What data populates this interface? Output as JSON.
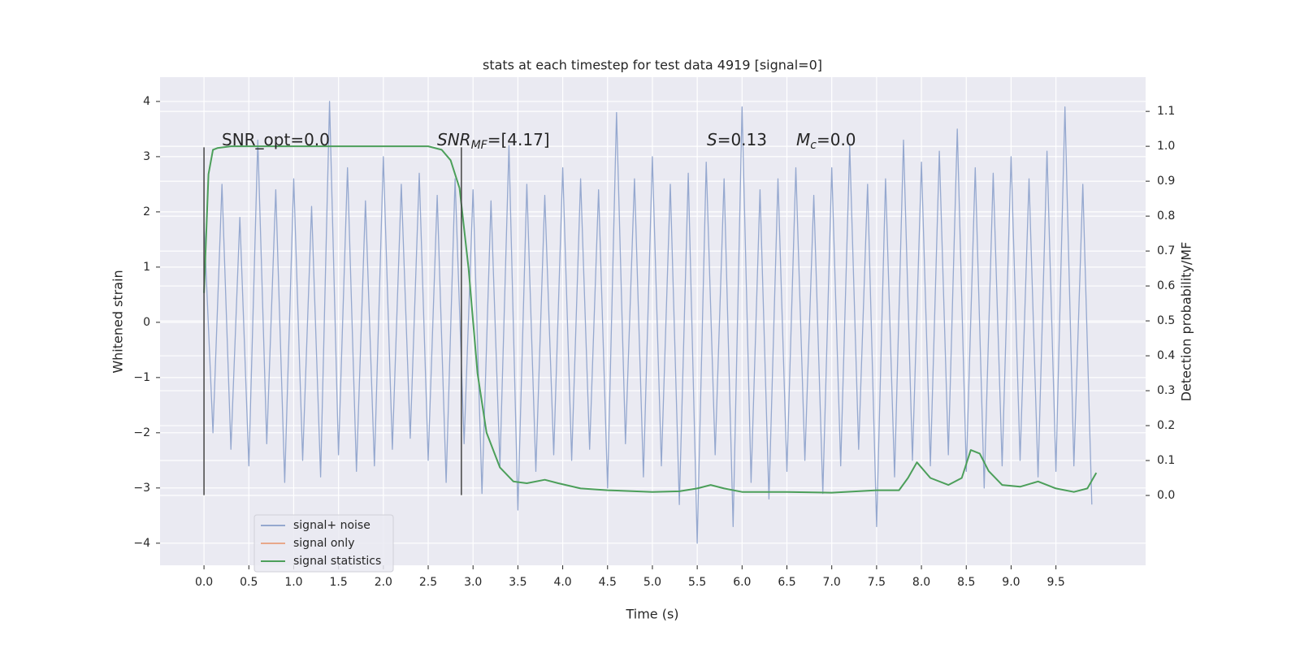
{
  "chart_data": {
    "type": "line",
    "title": "stats at each timestep for test data 4919 [signal=0]",
    "xlabel": "Time (s)",
    "ylabel": "Whitened strain",
    "y2label": "Detection probability/MF",
    "xlim": [
      -0.49,
      10.5
    ],
    "ylim": [
      -4.4,
      4.44
    ],
    "y2lim": [
      -0.2,
      1.198
    ],
    "grid": true,
    "legend": "lower left",
    "xticks": [
      {
        "value": 0,
        "label": "0.0"
      },
      0.5,
      {
        "value": 1,
        "label": "1.0"
      },
      1.5,
      {
        "value": 2,
        "label": "2.0"
      },
      2.5,
      {
        "value": 3,
        "label": "3.0"
      },
      3.5,
      {
        "value": 4,
        "label": "4.0"
      },
      4.5,
      {
        "value": 5,
        "label": "5.0"
      },
      5.5,
      {
        "value": 6,
        "label": "6.0"
      },
      6.5,
      {
        "value": 7,
        "label": "7.0"
      },
      7.5,
      {
        "value": 8,
        "label": "8.0"
      },
      8.5,
      {
        "value": 9,
        "label": "9.0"
      },
      9.5
    ],
    "yticks": [
      {
        "value": -4,
        "label": "−4"
      },
      {
        "value": -3,
        "label": "−3"
      },
      {
        "value": -2,
        "label": "−2"
      },
      {
        "value": -1,
        "label": "−1"
      },
      0,
      1,
      2,
      3,
      4
    ],
    "y2ticks": [
      {
        "value": 0,
        "label": "0.0"
      },
      0.1,
      0.2,
      0.3,
      0.4,
      0.5,
      0.6,
      0.7,
      0.8,
      0.9,
      {
        "value": 1,
        "label": "1.0"
      },
      1.1
    ],
    "vlines": {
      "x": [
        0,
        2.87
      ],
      "ymin": -3.13,
      "ymax": 3.17,
      "color": "#444444"
    },
    "annotations": [
      {
        "main": "SNR_opt=0.0"
      },
      {
        "main": "SNR",
        "sub": "MF",
        "rest": "=[4.17]"
      },
      {
        "main": "S",
        "rest": "=0.13"
      },
      {
        "main": "M",
        "sub": "c",
        "rest": "=0.0"
      }
    ],
    "series": [
      {
        "name": "signal+ noise",
        "color": "#95a8cf",
        "x": [
          0.0,
          0.1,
          0.2,
          0.3,
          0.4,
          0.5,
          0.6,
          0.7,
          0.8,
          0.9,
          1.0,
          1.1,
          1.2,
          1.3,
          1.4,
          1.5,
          1.6,
          1.7,
          1.8,
          1.9,
          2.0,
          2.1,
          2.2,
          2.3,
          2.4,
          2.5,
          2.6,
          2.7,
          2.8,
          2.9,
          3.0,
          3.1,
          3.2,
          3.3,
          3.4,
          3.5,
          3.6,
          3.7,
          3.8,
          3.9,
          4.0,
          4.1,
          4.2,
          4.3,
          4.4,
          4.5,
          4.6,
          4.7,
          4.8,
          4.9,
          5.0,
          5.1,
          5.2,
          5.3,
          5.4,
          5.5,
          5.6,
          5.7,
          5.8,
          5.9,
          6.0,
          6.1,
          6.2,
          6.3,
          6.4,
          6.5,
          6.6,
          6.7,
          6.8,
          6.9,
          7.0,
          7.1,
          7.2,
          7.3,
          7.4,
          7.5,
          7.6,
          7.7,
          7.8,
          7.9,
          8.0,
          8.1,
          8.2,
          8.3,
          8.4,
          8.5,
          8.6,
          8.7,
          8.8,
          8.9,
          9.0,
          9.1,
          9.2,
          9.3,
          9.4,
          9.5,
          9.6,
          9.7,
          9.8,
          9.9
        ],
        "values": [
          1.8,
          -2.0,
          2.5,
          -2.3,
          1.9,
          -2.6,
          3.3,
          -2.2,
          2.4,
          -2.9,
          2.6,
          -2.5,
          2.1,
          -2.8,
          4.0,
          -2.4,
          2.8,
          -2.7,
          2.2,
          -2.6,
          3.0,
          -2.3,
          2.5,
          -2.1,
          2.7,
          -2.5,
          2.3,
          -2.9,
          2.6,
          -2.2,
          2.4,
          -3.1,
          2.2,
          -2.6,
          3.2,
          -3.4,
          2.5,
          -2.7,
          2.3,
          -2.4,
          2.8,
          -2.5,
          2.6,
          -2.3,
          2.4,
          -3.0,
          3.8,
          -2.2,
          2.6,
          -2.8,
          3.0,
          -2.6,
          2.5,
          -3.3,
          2.7,
          -4.0,
          2.9,
          -2.4,
          2.6,
          -3.7,
          3.9,
          -2.9,
          2.4,
          -3.2,
          2.6,
          -2.7,
          2.8,
          -2.5,
          2.3,
          -3.1,
          2.8,
          -2.6,
          3.2,
          -2.3,
          2.5,
          -3.7,
          2.6,
          -2.8,
          3.3,
          -2.5,
          2.9,
          -2.6,
          3.1,
          -2.4,
          3.5,
          -2.7,
          2.8,
          -3.0,
          2.7,
          -2.6,
          3.0,
          -2.5,
          2.6,
          -2.8,
          3.1,
          -2.7,
          3.9,
          -2.6,
          2.5,
          -3.3
        ]
      },
      {
        "name": "signal only",
        "color": "#e8a88a"
      },
      {
        "name": "signal statistics",
        "color": "#4c9f5a",
        "axis": "y2",
        "x": [
          0,
          0.05,
          0.1,
          0.15,
          0.3,
          0.5,
          1,
          2,
          2.5,
          2.65,
          2.75,
          2.85,
          2.95,
          3.05,
          3.15,
          3.3,
          3.45,
          3.6,
          3.8,
          3.95,
          4.2,
          4.5,
          5.0,
          5.3,
          5.5,
          5.65,
          5.8,
          6.0,
          6.5,
          7.0,
          7.5,
          7.75,
          7.85,
          7.95,
          8.1,
          8.3,
          8.45,
          8.55,
          8.65,
          8.75,
          8.9,
          9.1,
          9.3,
          9.5,
          9.7,
          9.85,
          9.95
        ],
        "values": [
          0.58,
          0.92,
          0.99,
          0.995,
          1.0,
          1.0,
          1.0,
          1.0,
          1.0,
          0.99,
          0.96,
          0.88,
          0.65,
          0.35,
          0.18,
          0.08,
          0.04,
          0.035,
          0.045,
          0.035,
          0.02,
          0.015,
          0.01,
          0.012,
          0.02,
          0.03,
          0.02,
          0.01,
          0.01,
          0.008,
          0.015,
          0.015,
          0.05,
          0.095,
          0.05,
          0.03,
          0.05,
          0.13,
          0.12,
          0.07,
          0.03,
          0.025,
          0.04,
          0.02,
          0.01,
          0.02,
          0.065
        ]
      }
    ]
  }
}
